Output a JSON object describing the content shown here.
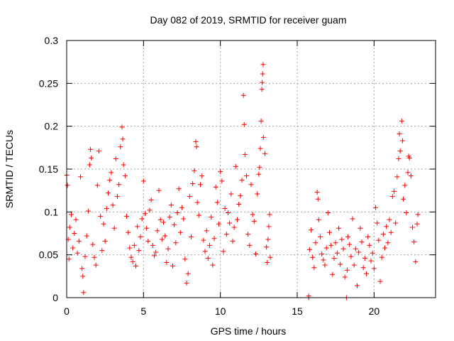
{
  "chart_data": {
    "type": "scatter",
    "title": "Day 082 of 2019, SRMTID for receiver guam",
    "xlabel": "GPS time / hours",
    "ylabel": "SRMTID / TECUs",
    "xlim": [
      0,
      24
    ],
    "ylim": [
      0,
      0.3
    ],
    "xticks": [
      0,
      5,
      10,
      15,
      20
    ],
    "xtick_labels": [
      "0",
      "5",
      "10",
      "15",
      "20"
    ],
    "yticks": [
      0,
      0.05,
      0.1,
      0.15,
      0.2,
      0.25,
      0.3
    ],
    "ytick_labels": [
      "0",
      "0.05",
      "0.1",
      "0.15",
      "0.2",
      "0.25",
      "0.3"
    ],
    "grid": true,
    "marker": "plus",
    "color": "#ff0000",
    "series": [
      {
        "name": "SRMTID",
        "points": [
          [
            0.0,
            0.143
          ],
          [
            0.05,
            0.131
          ],
          [
            0.1,
            0.068
          ],
          [
            0.15,
            0.045
          ],
          [
            0.2,
            0.082
          ],
          [
            0.3,
            0.097
          ],
          [
            0.4,
            0.058
          ],
          [
            0.5,
            0.075
          ],
          [
            0.6,
            0.091
          ],
          [
            0.7,
            0.052
          ],
          [
            0.8,
            0.066
          ],
          [
            0.9,
            0.141
          ],
          [
            1.0,
            0.034
          ],
          [
            1.05,
            0.025
          ],
          [
            1.1,
            0.006
          ],
          [
            1.2,
            0.048
          ],
          [
            1.3,
            0.072
          ],
          [
            1.4,
            0.101
          ],
          [
            1.5,
            0.155
          ],
          [
            1.55,
            0.173
          ],
          [
            1.6,
            0.163
          ],
          [
            1.7,
            0.062
          ],
          [
            1.8,
            0.047
          ],
          [
            1.9,
            0.038
          ],
          [
            2.0,
            0.131
          ],
          [
            2.1,
            0.171
          ],
          [
            2.2,
            0.095
          ],
          [
            2.3,
            0.055
          ],
          [
            2.4,
            0.086
          ],
          [
            2.5,
            0.066
          ],
          [
            2.6,
            0.104
          ],
          [
            2.7,
            0.122
          ],
          [
            2.8,
            0.137
          ],
          [
            2.9,
            0.146
          ],
          [
            3.0,
            0.108
          ],
          [
            3.1,
            0.081
          ],
          [
            3.2,
            0.162
          ],
          [
            3.3,
            0.118
          ],
          [
            3.4,
            0.132
          ],
          [
            3.5,
            0.176
          ],
          [
            3.6,
            0.199
          ],
          [
            3.65,
            0.185
          ],
          [
            3.7,
            0.155
          ],
          [
            3.8,
            0.142
          ],
          [
            3.9,
            0.095
          ],
          [
            4.0,
            0.076
          ],
          [
            4.1,
            0.058
          ],
          [
            4.2,
            0.047
          ],
          [
            4.3,
            0.042
          ],
          [
            4.4,
            0.061
          ],
          [
            4.5,
            0.037
          ],
          [
            4.6,
            0.083
          ],
          [
            4.7,
            0.055
          ],
          [
            4.8,
            0.071
          ],
          [
            4.9,
            0.092
          ],
          [
            5.0,
            0.136
          ],
          [
            5.1,
            0.098
          ],
          [
            5.2,
            0.081
          ],
          [
            5.3,
            0.066
          ],
          [
            5.4,
            0.102
          ],
          [
            5.5,
            0.114
          ],
          [
            5.6,
            0.061
          ],
          [
            5.7,
            0.049
          ],
          [
            5.8,
            0.053
          ],
          [
            5.9,
            0.078
          ],
          [
            6.0,
            0.125
          ],
          [
            6.1,
            0.091
          ],
          [
            6.2,
            0.068
          ],
          [
            6.3,
            0.088
          ],
          [
            6.4,
            0.072
          ],
          [
            6.5,
            0.041
          ],
          [
            6.6,
            0.057
          ],
          [
            6.7,
            0.094
          ],
          [
            6.8,
            0.108
          ],
          [
            6.9,
            0.037
          ],
          [
            7.0,
            0.085
          ],
          [
            7.1,
            0.064
          ],
          [
            7.2,
            0.099
          ],
          [
            7.3,
            0.127
          ],
          [
            7.4,
            0.076
          ],
          [
            7.5,
            0.105
          ],
          [
            7.6,
            0.092
          ],
          [
            7.7,
            0.045
          ],
          [
            7.8,
            0.017
          ],
          [
            7.9,
            0.028
          ],
          [
            8.0,
            0.118
          ],
          [
            8.1,
            0.071
          ],
          [
            8.2,
            0.133
          ],
          [
            8.3,
            0.148
          ],
          [
            8.4,
            0.182
          ],
          [
            8.45,
            0.176
          ],
          [
            8.5,
            0.111
          ],
          [
            8.6,
            0.096
          ],
          [
            8.7,
            0.132
          ],
          [
            8.8,
            0.142
          ],
          [
            8.9,
            0.067
          ],
          [
            9.0,
            0.054
          ],
          [
            9.1,
            0.078
          ],
          [
            9.2,
            0.046
          ],
          [
            9.3,
            0.061
          ],
          [
            9.4,
            0.094
          ],
          [
            9.5,
            0.038
          ],
          [
            9.6,
            0.069
          ],
          [
            9.7,
            0.129
          ],
          [
            9.8,
            0.111
          ],
          [
            9.9,
            0.086
          ],
          [
            10.0,
            0.147
          ],
          [
            10.1,
            0.136
          ],
          [
            10.2,
            0.054
          ],
          [
            10.3,
            0.104
          ],
          [
            10.4,
            0.074
          ],
          [
            10.5,
            0.099
          ],
          [
            10.6,
            0.087
          ],
          [
            10.7,
            0.121
          ],
          [
            10.8,
            0.066
          ],
          [
            10.9,
            0.082
          ],
          [
            11.0,
            0.153
          ],
          [
            11.1,
            0.091
          ],
          [
            11.2,
            0.109
          ],
          [
            11.3,
            0.119
          ],
          [
            11.4,
            0.137
          ],
          [
            11.5,
            0.236
          ],
          [
            11.55,
            0.202
          ],
          [
            11.6,
            0.167
          ],
          [
            11.7,
            0.142
          ],
          [
            11.8,
            0.074
          ],
          [
            11.9,
            0.061
          ],
          [
            12.0,
            0.132
          ],
          [
            12.1,
            0.097
          ],
          [
            12.2,
            0.089
          ],
          [
            12.3,
            0.051
          ],
          [
            12.4,
            0.121
          ],
          [
            12.5,
            0.144
          ],
          [
            12.55,
            0.152
          ],
          [
            12.6,
            0.174
          ],
          [
            12.65,
            0.206
          ],
          [
            12.7,
            0.243
          ],
          [
            12.72,
            0.251
          ],
          [
            12.75,
            0.261
          ],
          [
            12.78,
            0.272
          ],
          [
            12.8,
            0.187
          ],
          [
            12.9,
            0.168
          ],
          [
            13.0,
            0.059
          ],
          [
            13.05,
            0.041
          ],
          [
            13.1,
            0.068
          ],
          [
            13.15,
            0.083
          ],
          [
            13.2,
            0.097
          ],
          [
            13.25,
            0.047
          ],
          [
            15.75,
            0.0
          ],
          [
            15.75,
            0.002
          ],
          [
            15.8,
            0.056
          ],
          [
            15.9,
            0.079
          ],
          [
            16.0,
            0.047
          ],
          [
            16.1,
            0.035
          ],
          [
            16.2,
            0.064
          ],
          [
            16.3,
            0.123
          ],
          [
            16.35,
            0.115
          ],
          [
            16.4,
            0.091
          ],
          [
            16.5,
            0.071
          ],
          [
            16.6,
            0.051
          ],
          [
            16.7,
            0.044
          ],
          [
            16.8,
            0.038
          ],
          [
            16.9,
            0.058
          ],
          [
            17.0,
            0.099
          ],
          [
            17.1,
            0.076
          ],
          [
            17.2,
            0.061
          ],
          [
            17.3,
            0.027
          ],
          [
            17.4,
            0.046
          ],
          [
            17.5,
            0.064
          ],
          [
            17.6,
            0.052
          ],
          [
            17.7,
            0.081
          ],
          [
            17.8,
            0.039
          ],
          [
            17.9,
            0.068
          ],
          [
            18.0,
            0.057
          ],
          [
            18.1,
            0.024
          ],
          [
            18.2,
            0.0
          ],
          [
            18.25,
            0.032
          ],
          [
            18.3,
            0.071
          ],
          [
            18.4,
            0.062
          ],
          [
            18.5,
            0.048
          ],
          [
            18.6,
            0.092
          ],
          [
            18.7,
            0.038
          ],
          [
            18.8,
            0.057
          ],
          [
            18.9,
            0.014
          ],
          [
            19.0,
            0.053
          ],
          [
            19.1,
            0.081
          ],
          [
            19.2,
            0.065
          ],
          [
            19.3,
            0.035
          ],
          [
            19.4,
            0.046
          ],
          [
            19.5,
            0.028
          ],
          [
            19.6,
            0.071
          ],
          [
            19.7,
            0.061
          ],
          [
            19.8,
            0.043
          ],
          [
            19.9,
            0.052
          ],
          [
            20.0,
            0.034
          ],
          [
            20.1,
            0.105
          ],
          [
            20.2,
            0.087
          ],
          [
            20.3,
            0.067
          ],
          [
            20.4,
            0.019
          ],
          [
            20.5,
            0.047
          ],
          [
            20.6,
            0.074
          ],
          [
            20.7,
            0.058
          ],
          [
            20.8,
            0.083
          ],
          [
            20.9,
            0.064
          ],
          [
            21.0,
            0.091
          ],
          [
            21.1,
            0.076
          ],
          [
            21.2,
            0.118
          ],
          [
            21.3,
            0.124
          ],
          [
            21.4,
            0.087
          ],
          [
            21.5,
            0.141
          ],
          [
            21.6,
            0.162
          ],
          [
            21.65,
            0.191
          ],
          [
            21.7,
            0.171
          ],
          [
            21.8,
            0.206
          ],
          [
            21.85,
            0.183
          ],
          [
            21.9,
            0.115
          ],
          [
            22.0,
            0.131
          ],
          [
            22.1,
            0.099
          ],
          [
            22.2,
            0.146
          ],
          [
            22.25,
            0.165
          ],
          [
            22.3,
            0.163
          ],
          [
            22.4,
            0.142
          ],
          [
            22.5,
            0.082
          ],
          [
            22.6,
            0.065
          ],
          [
            22.7,
            0.042
          ],
          [
            22.8,
            0.086
          ],
          [
            22.85,
            0.097
          ]
        ]
      }
    ]
  }
}
